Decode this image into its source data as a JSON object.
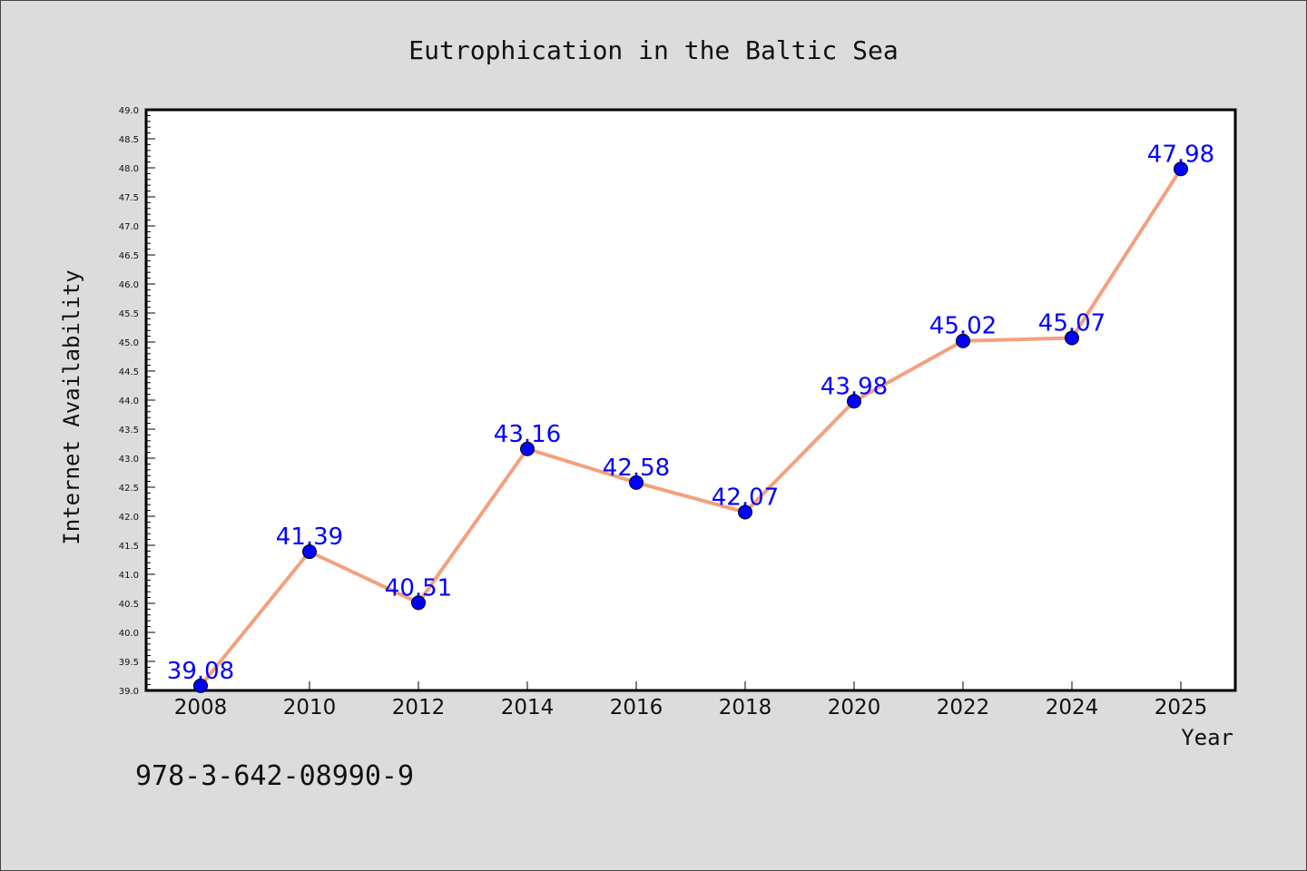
{
  "chart_data": {
    "type": "line",
    "title": "Eutrophication in the Baltic Sea",
    "xlabel": "Year",
    "ylabel": "Internet Availability",
    "x": [
      "2008",
      "2010",
      "2012",
      "2014",
      "2016",
      "2018",
      "2020",
      "2022",
      "2024",
      "2025"
    ],
    "series": [
      {
        "values": [
          39.08,
          41.39,
          40.51,
          43.16,
          42.58,
          42.07,
          43.98,
          45.02,
          45.07,
          47.98
        ],
        "data_labels": [
          "39.08",
          "41.39",
          "40.51",
          "43.16",
          "42.58",
          "42.07",
          "43.98",
          "45.02",
          "45.07",
          "47.98"
        ],
        "line_color": "#f4a07e",
        "marker_color": "#0000ff"
      }
    ],
    "ylim": [
      39.0,
      49.0
    ],
    "yticks": [
      "39.0",
      "39.5",
      "40.0",
      "40.5",
      "41.0",
      "41.5",
      "42.0",
      "42.5",
      "43.0",
      "43.5",
      "44.0",
      "44.5",
      "45.0",
      "45.5",
      "46.0",
      "46.5",
      "47.0",
      "47.5",
      "48.0",
      "48.5",
      "49.0"
    ],
    "grid": false,
    "legend": "none",
    "data_label_color": "#0000ff",
    "background": "#dcdcdc",
    "plot_background": "#ffffff"
  },
  "footer_text": "978-3-642-08990-9"
}
